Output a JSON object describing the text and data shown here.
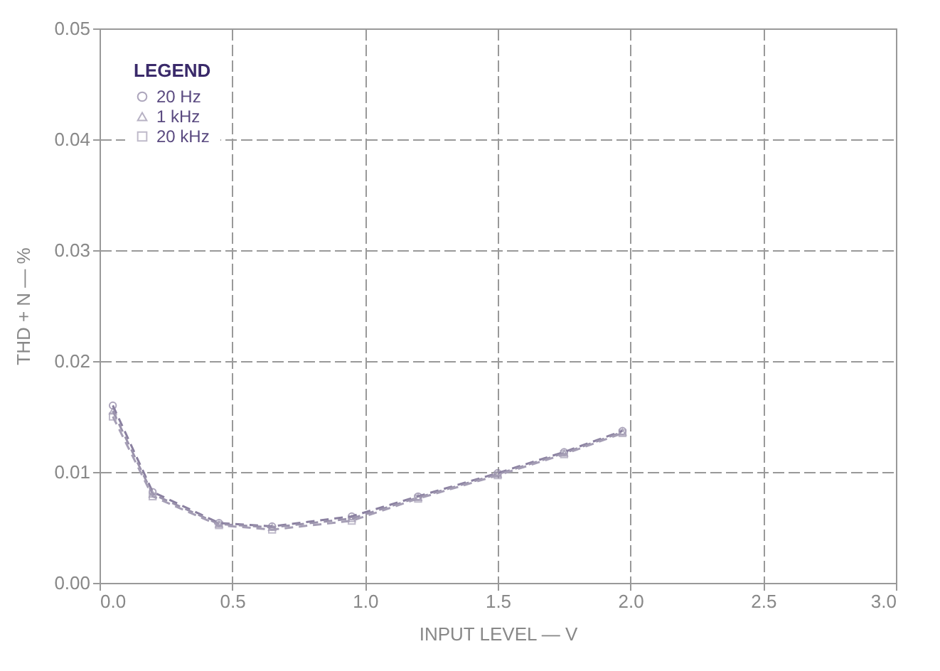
{
  "chart_data": {
    "type": "line",
    "xlabel": "INPUT LEVEL — V",
    "ylabel": "THD + N — %",
    "legend_title": "LEGEND",
    "legend": "top left",
    "grid": true,
    "line_style": "dashed",
    "xlim": [
      0,
      3
    ],
    "xticks": [
      {
        "value": 0,
        "label": "0.0"
      },
      {
        "value": 0.5,
        "label": "0.5"
      },
      {
        "value": 1,
        "label": "1.0"
      },
      {
        "value": 1.5,
        "label": "1.5"
      },
      {
        "value": 2,
        "label": "2.0"
      },
      {
        "value": 2.5,
        "label": "2.5"
      },
      {
        "value": 3,
        "label": "3.0"
      }
    ],
    "ylim": [
      0,
      0.05
    ],
    "yticks": [
      {
        "value": 0,
        "label": "0.00"
      },
      {
        "value": 0.01,
        "label": "0.01"
      },
      {
        "value": 0.02,
        "label": "0.02"
      },
      {
        "value": 0.03,
        "label": "0.03"
      },
      {
        "value": 0.04,
        "label": "0.04"
      },
      {
        "value": 0.05,
        "label": "0.05"
      }
    ],
    "series": [
      {
        "name": "20 Hz",
        "color": "#8a80a0",
        "marker": "circle",
        "x": [
          0.05,
          0.2,
          0.45,
          0.65,
          0.95,
          1.2,
          1.5,
          1.75,
          1.97
        ],
        "values": [
          0.016,
          0.0082,
          0.0054,
          0.0051,
          0.006,
          0.0078,
          0.0099,
          0.0118,
          0.0137
        ]
      },
      {
        "name": "1 kHz",
        "color": "#9a92ac",
        "marker": "triangle",
        "x": [
          0.05,
          0.2,
          0.45,
          0.65,
          0.95,
          1.2,
          1.5,
          1.75,
          1.97
        ],
        "values": [
          0.0155,
          0.008,
          0.0053,
          0.005,
          0.0058,
          0.0077,
          0.0098,
          0.0117,
          0.0136
        ]
      },
      {
        "name": "20 kHz",
        "color": "#a59eb5",
        "marker": "square",
        "x": [
          0.05,
          0.2,
          0.45,
          0.65,
          0.95,
          1.2,
          1.5,
          1.75,
          1.97
        ],
        "values": [
          0.015,
          0.0078,
          0.0052,
          0.0048,
          0.0056,
          0.0076,
          0.0097,
          0.0116,
          0.0135
        ]
      }
    ]
  }
}
